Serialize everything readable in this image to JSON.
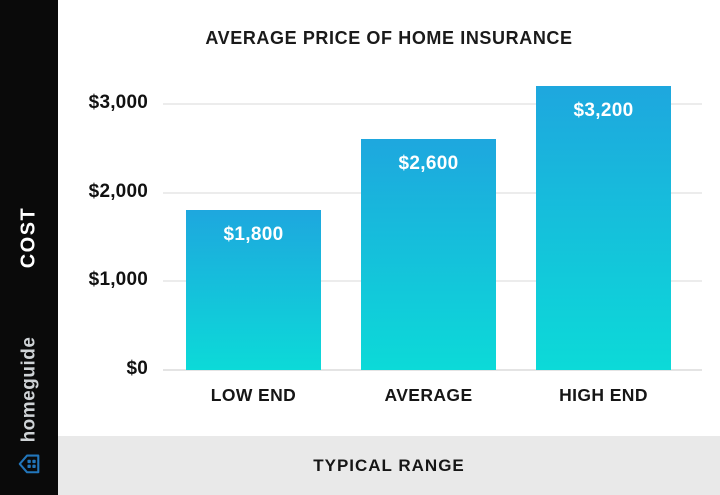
{
  "sidebar": {
    "cost_label": "COST",
    "brand_name": "homeguide"
  },
  "footer": {
    "label": "TYPICAL RANGE"
  },
  "chart_data": {
    "type": "bar",
    "title": "AVERAGE PRICE OF HOME INSURANCE",
    "categories": [
      "LOW END",
      "AVERAGE",
      "HIGH END"
    ],
    "values": [
      1800,
      2600,
      3200
    ],
    "value_labels": [
      "$1,800",
      "$2,600",
      "$3,200"
    ],
    "yticks": [
      0,
      1000,
      2000,
      3000
    ],
    "ytick_labels": [
      "$0",
      "$1,000",
      "$2,000",
      "$3,000"
    ],
    "ylim": [
      0,
      3400
    ],
    "xlabel": "TYPICAL RANGE",
    "ylabel": "COST",
    "grid": true,
    "legend_position": "none"
  },
  "colors": {
    "bar_gradient_top": "#1EA7DE",
    "bar_gradient_bottom": "#0CDAD8",
    "sidebar_bg": "#0a0a0a",
    "footer_bg": "#e9e9e9",
    "grid_line": "#ececec",
    "brand_blue": "#2276bb",
    "title_text": "#1a1a1a",
    "bar_label_text": "#ffffff"
  }
}
